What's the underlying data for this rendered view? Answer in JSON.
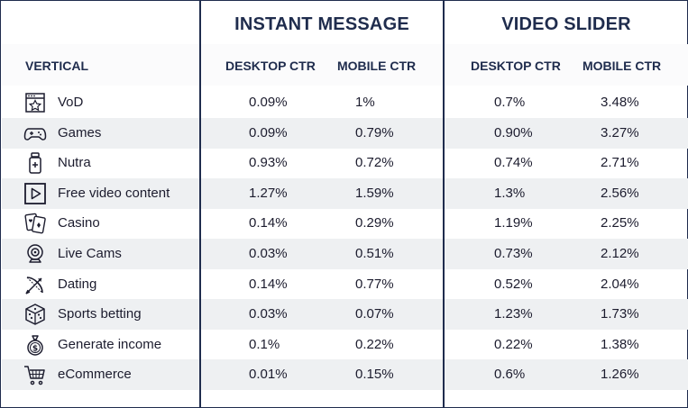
{
  "groups": {
    "instant_message": "INSTANT MESSAGE",
    "video_slider": "VIDEO SLIDER"
  },
  "headers": {
    "vertical": "VERTICAL",
    "im_desktop": "DESKTOP CTR",
    "im_mobile": "MOBILE CTR",
    "vs_desktop": "DESKTOP CTR",
    "vs_mobile": "MOBILE CTR"
  },
  "rows": [
    {
      "name": "VoD",
      "icon": "video-on-demand-star-icon",
      "im_desktop": "0.09%",
      "im_mobile": "1%",
      "vs_desktop": "0.7%",
      "vs_mobile": "3.48%"
    },
    {
      "name": "Games",
      "icon": "gamepad-icon",
      "im_desktop": "0.09%",
      "im_mobile": "0.79%",
      "vs_desktop": "0.90%",
      "vs_mobile": "3.27%"
    },
    {
      "name": "Nutra",
      "icon": "supplement-bottle-icon",
      "im_desktop": "0.93%",
      "im_mobile": "0.72%",
      "vs_desktop": "0.74%",
      "vs_mobile": "2.71%"
    },
    {
      "name": "Free video content",
      "icon": "play-button-icon",
      "im_desktop": "1.27%",
      "im_mobile": "1.59%",
      "vs_desktop": "1.3%",
      "vs_mobile": "2.56%"
    },
    {
      "name": "Casino",
      "icon": "playing-cards-icon",
      "im_desktop": "0.14%",
      "im_mobile": "0.29%",
      "vs_desktop": "1.19%",
      "vs_mobile": "2.25%"
    },
    {
      "name": "Live Cams",
      "icon": "webcam-icon",
      "im_desktop": "0.03%",
      "im_mobile": "0.51%",
      "vs_desktop": "0.73%",
      "vs_mobile": "2.12%"
    },
    {
      "name": "Dating",
      "icon": "bow-and-arrow-icon",
      "im_desktop": "0.14%",
      "im_mobile": "0.77%",
      "vs_desktop": "0.52%",
      "vs_mobile": "2.04%"
    },
    {
      "name": "Sports betting",
      "icon": "dice-icon",
      "im_desktop": "0.03%",
      "im_mobile": "0.07%",
      "vs_desktop": "1.23%",
      "vs_mobile": "1.73%"
    },
    {
      "name": "Generate income",
      "icon": "money-bag-icon",
      "im_desktop": "0.1%",
      "im_mobile": "0.22%",
      "vs_desktop": "0.22%",
      "vs_mobile": "1.38%"
    },
    {
      "name": "eCommerce",
      "icon": "shopping-cart-icon",
      "im_desktop": "0.01%",
      "im_mobile": "0.15%",
      "vs_desktop": "0.6%",
      "vs_mobile": "1.26%"
    }
  ]
}
